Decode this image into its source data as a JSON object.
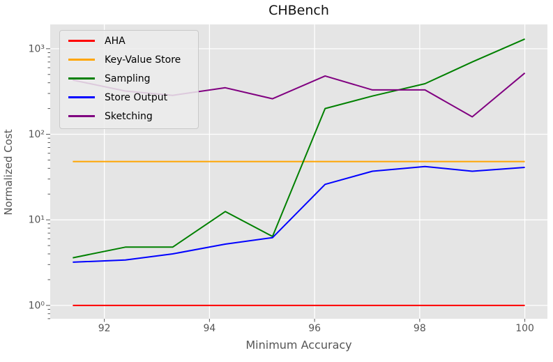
{
  "title": "CHBench",
  "chart_data": {
    "type": "line",
    "title": "CHBench",
    "xlabel": "Minimum Accuracy",
    "ylabel": "Normalized Cost",
    "x": [
      91.4,
      92.4,
      93.3,
      94.3,
      95.2,
      96.2,
      97.1,
      98.1,
      99.0,
      100.0
    ],
    "series": [
      {
        "name": "AHA",
        "color": "#ff0000",
        "values": [
          1,
          1,
          1,
          1,
          1,
          1,
          1,
          1,
          1,
          1
        ]
      },
      {
        "name": "Key-Value Store",
        "color": "#ffa500",
        "values": [
          48,
          48,
          48,
          48,
          48,
          48,
          48,
          48,
          48,
          48
        ]
      },
      {
        "name": "Sampling",
        "color": "#008000",
        "values": [
          3.6,
          4.8,
          4.8,
          12.5,
          6.4,
          200,
          280,
          390,
          700,
          1300
        ]
      },
      {
        "name": "Store Output",
        "color": "#0000ff",
        "values": [
          3.2,
          3.4,
          4.0,
          5.2,
          6.2,
          26,
          37,
          42,
          37,
          41
        ]
      },
      {
        "name": "Sketching",
        "color": "#800080",
        "values": [
          430,
          320,
          285,
          350,
          260,
          480,
          330,
          330,
          160,
          520
        ]
      }
    ],
    "x_ticks": [
      92,
      94,
      96,
      98,
      100
    ],
    "y_tick_exponents": [
      0,
      1,
      2,
      3
    ],
    "y_tick_labels": [
      "10⁰",
      "10¹",
      "10²",
      "10³"
    ],
    "y_scale": "log",
    "x_range": [
      90.97,
      100.43
    ],
    "y_log_range": [
      -0.156,
      3.284
    ],
    "grid": true,
    "legend_position": "upper-left",
    "colors": {
      "plot_background": "#e5e5e5",
      "grid": "#ffffff",
      "tick": "#555555",
      "tick_label": "#555555",
      "axis_label": "#555555",
      "title": "#111111"
    }
  }
}
